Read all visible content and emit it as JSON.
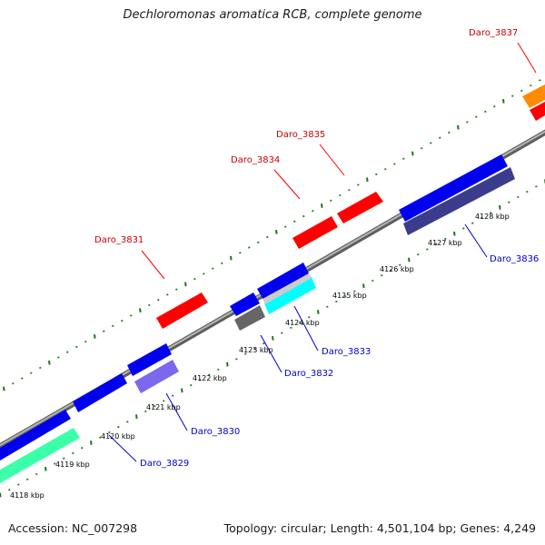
{
  "title": "Dechloromonas aromatica RCB, complete genome",
  "footer": {
    "accession": "Accession: NC_007298",
    "summary": "Topology: circular; Length: 4,501,104 bp; Genes: 4,249"
  },
  "axis_ticks": [
    "4118 kbp",
    "4119 kbp",
    "4120 kbp",
    "4121 kbp",
    "4122 kbp",
    "4123 kbp",
    "4124 kbp",
    "4125 kbp",
    "4126 kbp",
    "4127 kbp",
    "4128 kbp"
  ],
  "genes_top": [
    {
      "name": "Daro_3831",
      "color": "#ff0000"
    },
    {
      "name": "Daro_3834",
      "color": "#ff0000"
    },
    {
      "name": "Daro_3835",
      "color": "#ff0000"
    },
    {
      "name": "Daro_3837",
      "color": "#ff0000"
    }
  ],
  "genes_bottom": [
    {
      "name": "Daro_3829",
      "color": "#0000cc"
    },
    {
      "name": "Daro_3830",
      "color": "#0000cc"
    },
    {
      "name": "Daro_3832",
      "color": "#0000cc"
    },
    {
      "name": "Daro_3833",
      "color": "#0000cc"
    },
    {
      "name": "Daro_3836",
      "color": "#0000cc"
    }
  ],
  "colors": {
    "backbone": "#8c8c8c",
    "tick": "#1a7a1a",
    "red_gene": "#ff0000",
    "blue_gene": "#0000ee",
    "orange_gene": "#ff8c00",
    "slate_gene": "#6a5acd",
    "darkslate_gene": "#3c3c8c",
    "cyan_gene": "#00ffff",
    "green_gene": "#3cffaa",
    "gray_gene": "#666666",
    "silver_gene": "#cccccc"
  }
}
